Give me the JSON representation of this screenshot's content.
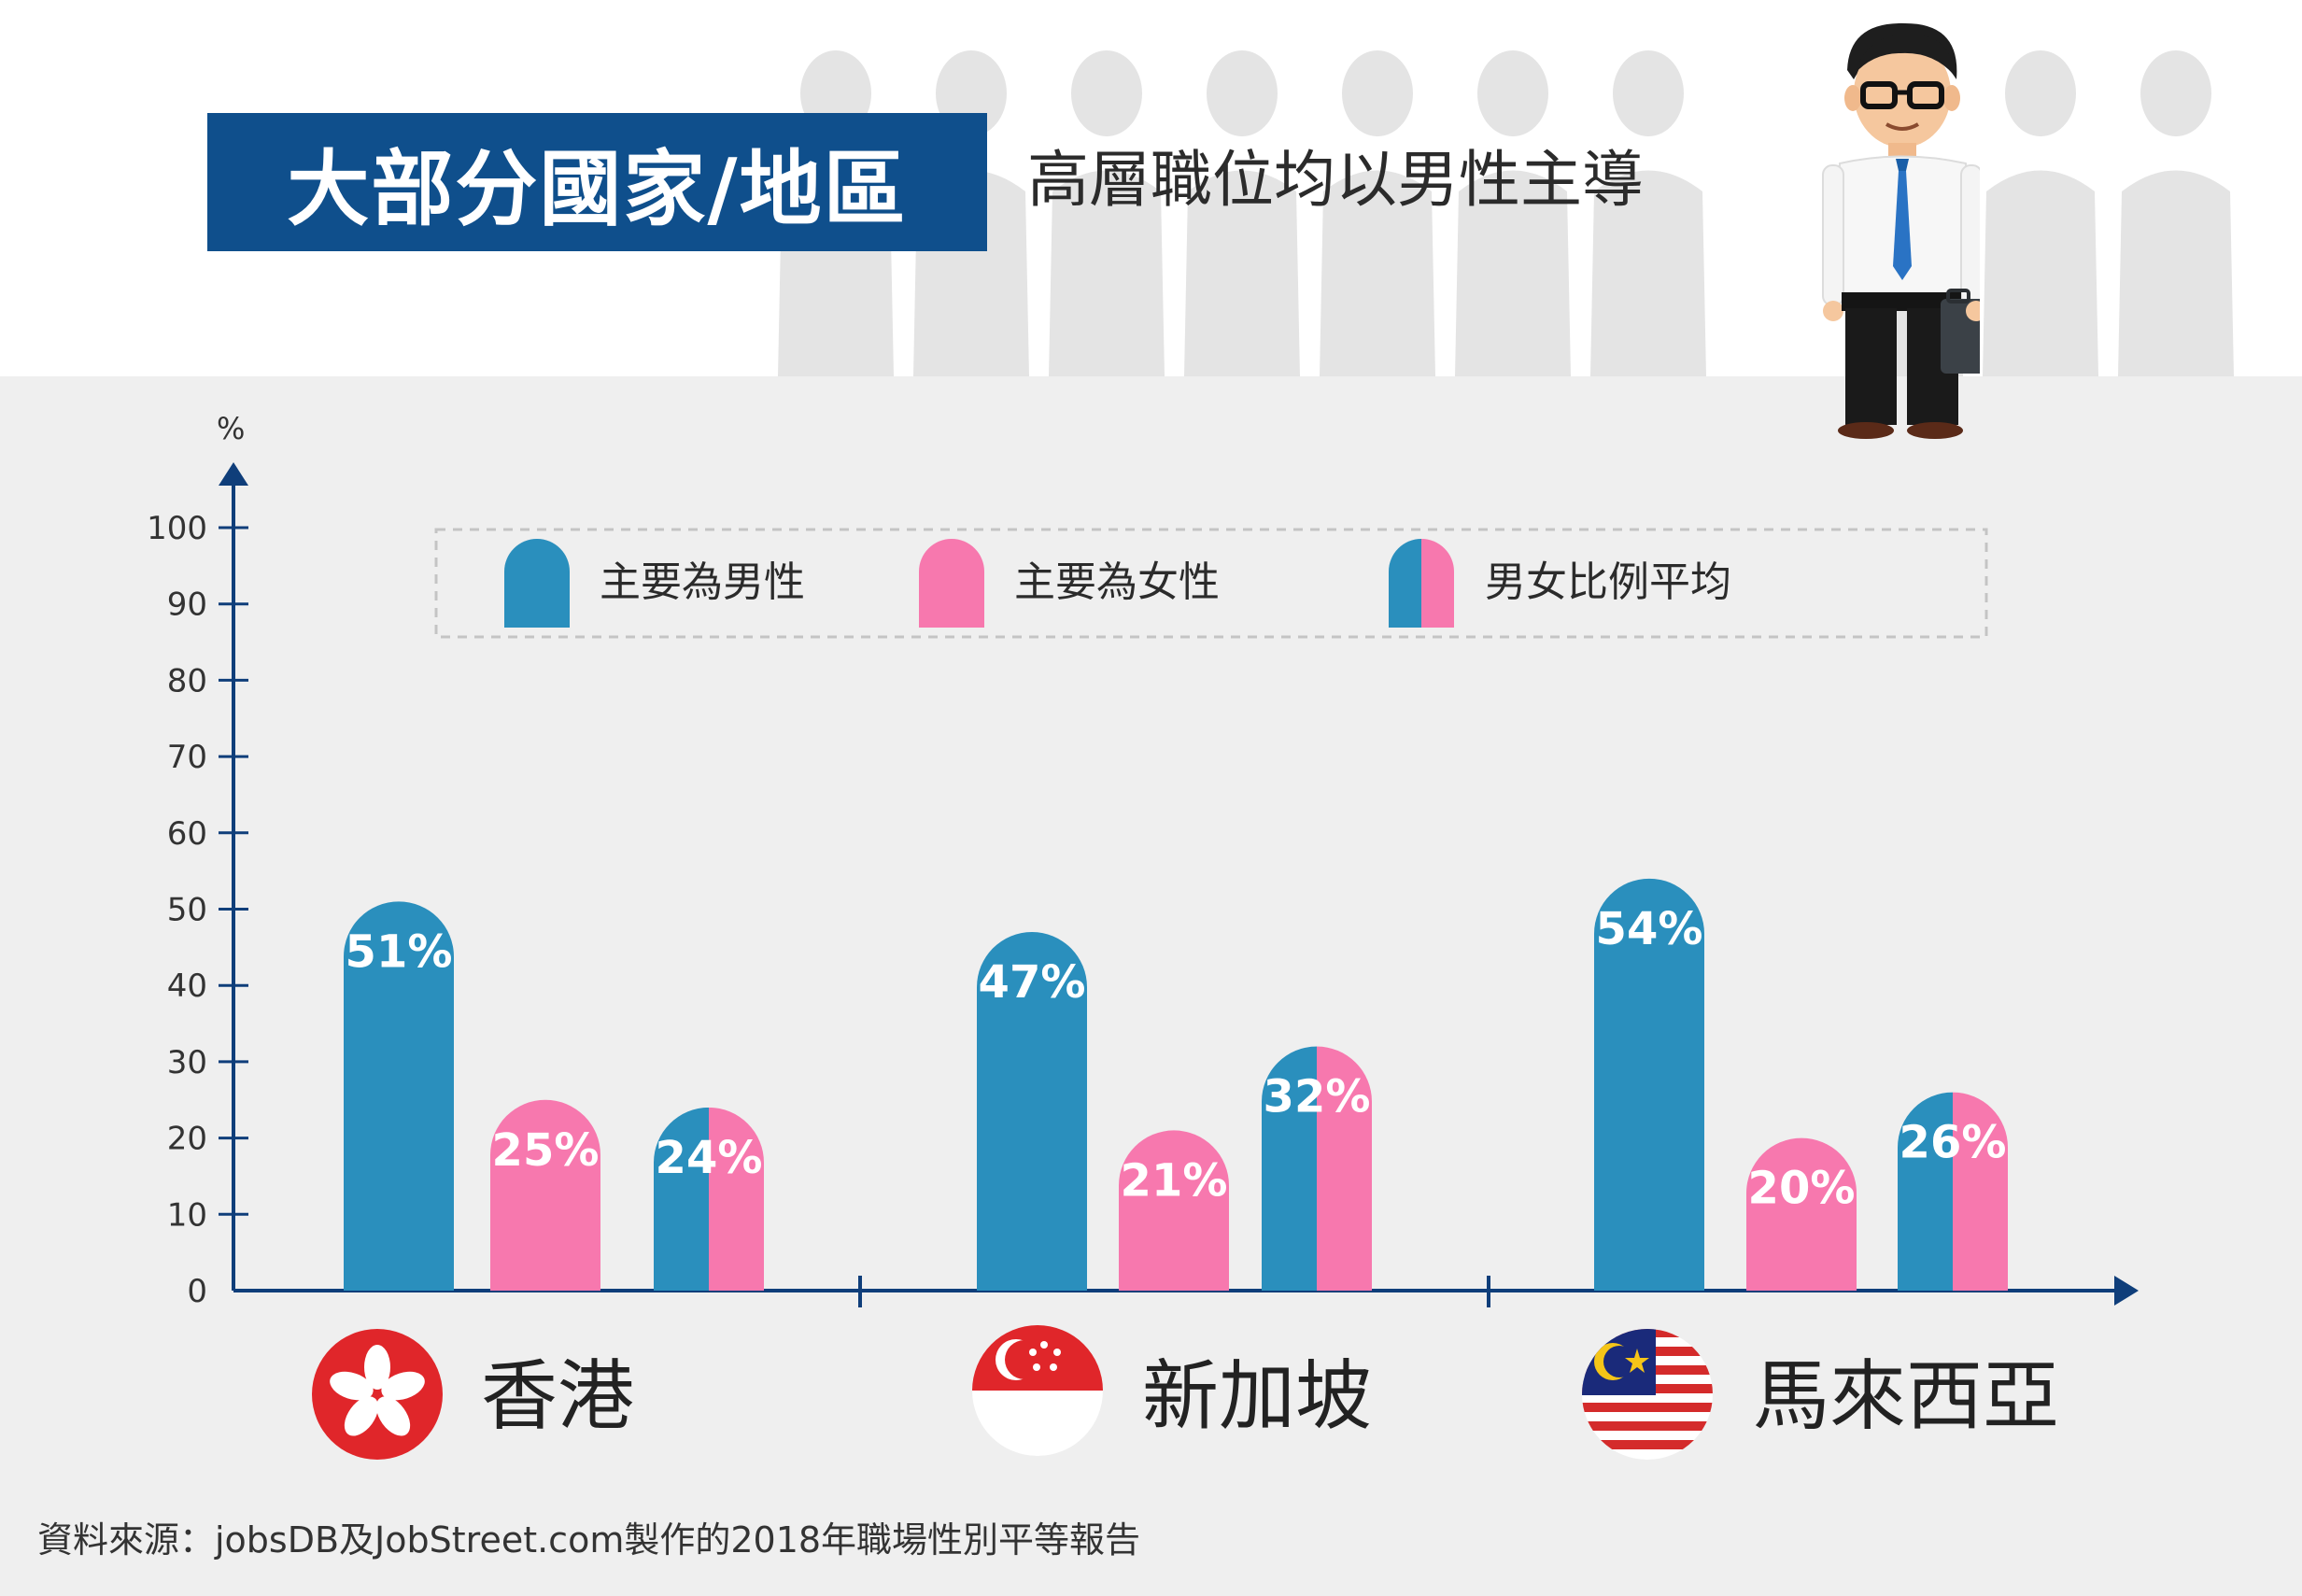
{
  "title": "大部分國家/地區",
  "subtitle": "高層職位均以男性主導",
  "source": "資料來源：jobsDB及JobStreet.com製作的2018年職場性別平等報告",
  "colors": {
    "male": "#2a8fbd",
    "female": "#f778ae",
    "title_bg": "#0f4f8c",
    "axis": "#0f3e7a"
  },
  "legend": [
    {
      "label": "主要為男性",
      "swatch": "male"
    },
    {
      "label": "主要為女性",
      "swatch": "female"
    },
    {
      "label": "男女比例平均",
      "swatch": "split"
    }
  ],
  "chart_data": {
    "type": "bar",
    "ylabel": "%",
    "ylim": [
      0,
      100
    ],
    "yticks": [
      0,
      10,
      20,
      30,
      40,
      50,
      60,
      70,
      80,
      90,
      100
    ],
    "categories": [
      "香港",
      "新加坡",
      "馬來西亞"
    ],
    "series": [
      {
        "name": "主要為男性",
        "values": [
          51,
          47,
          54
        ]
      },
      {
        "name": "主要為女性",
        "values": [
          25,
          21,
          20
        ]
      },
      {
        "name": "男女比例平均",
        "values": [
          24,
          32,
          26
        ]
      }
    ],
    "data_labels": [
      [
        "51%",
        "25%",
        "24%"
      ],
      [
        "47%",
        "21%",
        "32%"
      ],
      [
        "54%",
        "20%",
        "26%"
      ]
    ],
    "legend_position": "top"
  }
}
